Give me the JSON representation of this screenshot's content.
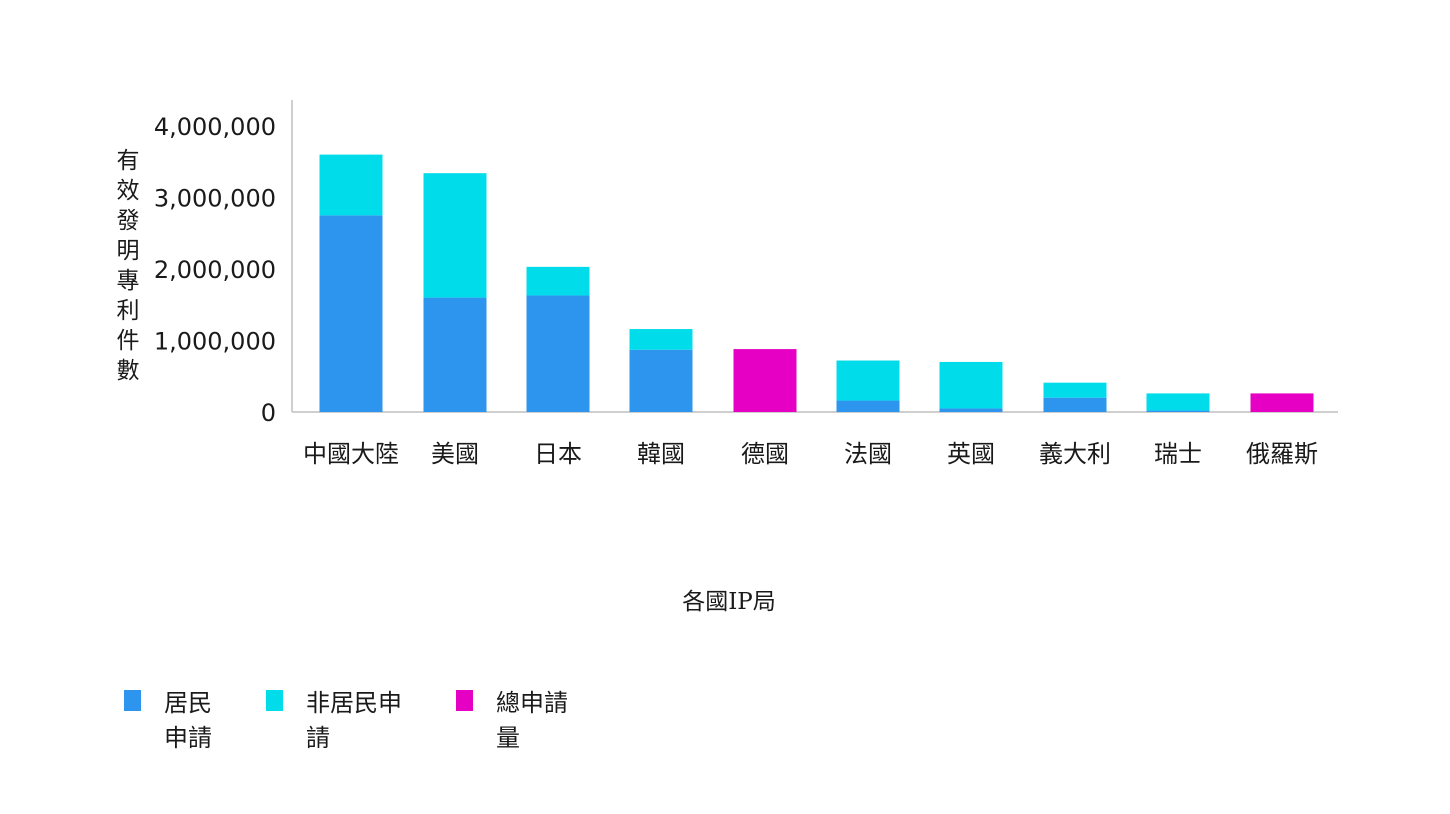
{
  "chart_data": {
    "type": "bar",
    "stacked": true,
    "categories": [
      "中國大陸",
      "美國",
      "日本",
      "韓國",
      "德國",
      "法國",
      "英國",
      "義大利",
      "瑞士",
      "俄羅斯"
    ],
    "series": [
      {
        "name": "居民申請",
        "legend_lines": [
          "居民",
          "申請"
        ],
        "color": "#2e95ee",
        "values": [
          2750000,
          1600000,
          1630000,
          870000,
          null,
          160000,
          50000,
          200000,
          20000,
          null
        ]
      },
      {
        "name": "非居民申請",
        "legend_lines": [
          "非居民申",
          "請"
        ],
        "color": "#00dcea",
        "values": [
          850000,
          1740000,
          400000,
          290000,
          null,
          560000,
          650000,
          210000,
          240000,
          null
        ]
      },
      {
        "name": "總申請量",
        "legend_lines": [
          "總申請",
          "量"
        ],
        "color": "#e600c3",
        "values": [
          null,
          null,
          null,
          null,
          880000,
          null,
          null,
          null,
          null,
          260000
        ]
      }
    ],
    "yticks": [
      0,
      1000000,
      2000000,
      3000000,
      4000000
    ],
    "ytick_labels": [
      "0",
      "1,000,000",
      "2,000,000",
      "3,000,000",
      "4,000,000"
    ],
    "ylim": [
      0,
      4200000
    ],
    "xlabel": "各國IP局",
    "ylabel": "有效發明專利件數",
    "title": "",
    "grid": false,
    "legend_position": "bottom-left"
  }
}
